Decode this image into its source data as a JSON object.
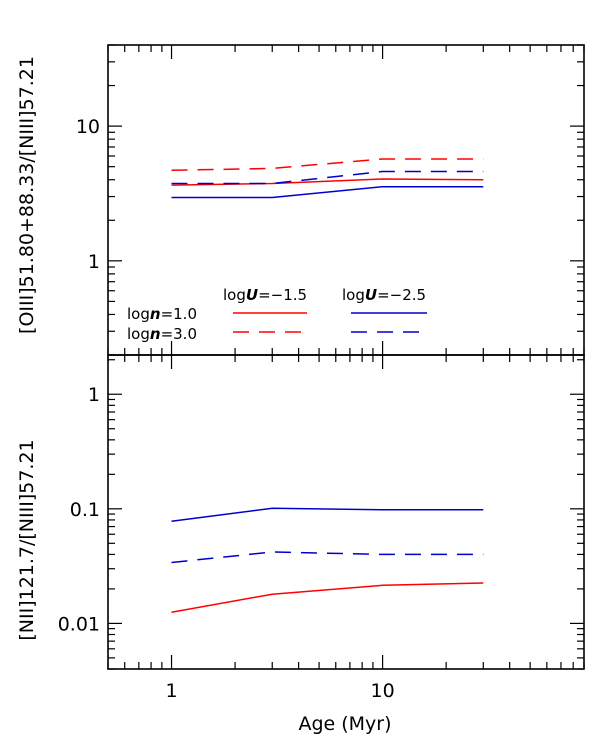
{
  "chart_data": [
    {
      "type": "line",
      "panel": "top",
      "ylabel": "[OIII]51.80+88.33/[NIII]57.21",
      "yscale": "log",
      "ylim": [
        0.2,
        40
      ],
      "y_tick_labels": [
        {
          "value": 1,
          "label": "1"
        },
        {
          "value": 10,
          "label": "10"
        }
      ],
      "series": [
        {
          "name": "log n=1.0, log U=-1.5",
          "color": "#ff0000",
          "dash": "solid",
          "x": [
            1,
            3,
            10,
            30
          ],
          "y": [
            3.65,
            3.75,
            4.05,
            4.0
          ]
        },
        {
          "name": "log n=3.0, log U=-1.5",
          "color": "#ff0000",
          "dash": "dashed",
          "x": [
            1,
            3,
            10,
            30
          ],
          "y": [
            4.7,
            4.85,
            5.7,
            5.7
          ]
        },
        {
          "name": "log n=1.0, log U=-2.5",
          "color": "#0000cc",
          "dash": "solid",
          "x": [
            1,
            3,
            10,
            30
          ],
          "y": [
            2.95,
            2.95,
            3.55,
            3.55
          ]
        },
        {
          "name": "log n=3.0, log U=-2.5",
          "color": "#0000cc",
          "dash": "dashed",
          "x": [
            1,
            3,
            10,
            30
          ],
          "y": [
            3.75,
            3.75,
            4.6,
            4.6
          ]
        }
      ],
      "legend": {
        "placement": "bottom-left",
        "col_headers": [
          "log U=−1.5",
          "log U=−2.5"
        ],
        "row_labels": [
          "log n=1.0",
          "log n=3.0"
        ]
      }
    },
    {
      "type": "line",
      "panel": "bottom",
      "ylabel": "[NII]121.7/[NIII]57.21",
      "xlabel": "Age (Myr)",
      "yscale": "log",
      "ylim": [
        0.004,
        2.2
      ],
      "y_tick_labels": [
        {
          "value": 0.01,
          "label": "0.01"
        },
        {
          "value": 0.1,
          "label": "0.1"
        },
        {
          "value": 1,
          "label": "1"
        }
      ],
      "series": [
        {
          "name": "log n=1.0, log U=-1.5",
          "color": "#ff0000",
          "dash": "solid",
          "x": [
            1,
            3,
            10,
            30
          ],
          "y": [
            0.0125,
            0.018,
            0.0215,
            0.0225
          ]
        },
        {
          "name": "log n=3.0, log U=-2.5",
          "color": "#0000cc",
          "dash": "dashed",
          "x": [
            1,
            3,
            10,
            30
          ],
          "y": [
            0.034,
            0.042,
            0.04,
            0.04
          ]
        },
        {
          "name": "log n=1.0, log U=-2.5",
          "color": "#0000cc",
          "dash": "solid",
          "x": [
            1,
            3,
            10,
            30
          ],
          "y": [
            0.078,
            0.101,
            0.098,
            0.098
          ]
        }
      ]
    }
  ],
  "x_axis": {
    "label": "Age (Myr)",
    "scale": "log",
    "xlim": [
      0.5,
      90
    ],
    "tick_labels": [
      {
        "value": 1,
        "label": "1"
      },
      {
        "value": 10,
        "label": "10"
      }
    ]
  },
  "legend_text": {
    "logU_a": {
      "prefix": "log",
      "sym": "U",
      "rest": "=−1.5"
    },
    "logU_b": {
      "prefix": "log",
      "sym": "U",
      "rest": "=−2.5"
    },
    "logn_a": {
      "prefix": "log",
      "sym": "n",
      "rest": "=1.0"
    },
    "logn_b": {
      "prefix": "log",
      "sym": "n",
      "rest": "=3.0"
    }
  },
  "colors": {
    "red": "#ff0000",
    "blue": "#0000cc"
  }
}
